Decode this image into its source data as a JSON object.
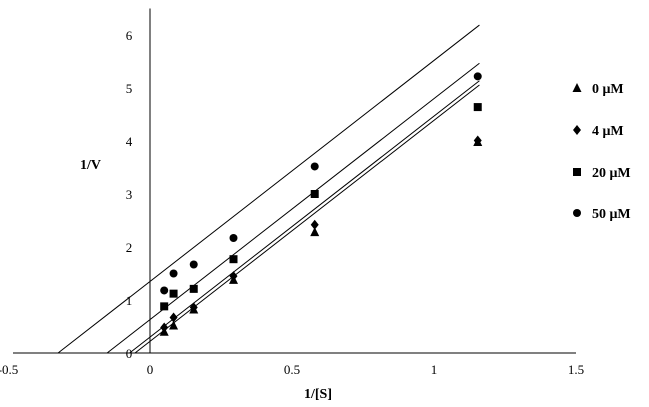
{
  "chart_data": {
    "type": "scatter",
    "xlabel": "1/[S]",
    "ylabel": "1/V",
    "xlim": [
      -0.5,
      1.5
    ],
    "ylim": [
      0,
      6.5
    ],
    "x_ticks": [
      -0.5,
      0,
      0.5,
      1,
      1.5
    ],
    "x_tick_labels": [
      "-0.5",
      "0",
      "0.5",
      "1",
      "1.5"
    ],
    "y_ticks": [
      0,
      1,
      2,
      3,
      4,
      5,
      6
    ],
    "y_tick_labels": [
      "0",
      "1",
      "2",
      "3",
      "4",
      "5",
      "6"
    ],
    "grid": false,
    "legend_position": "right",
    "series": [
      {
        "name": "0 μM",
        "marker": "triangle",
        "x": [
          0.05,
          0.083,
          0.154,
          0.294,
          0.58,
          1.154
        ],
        "y": [
          0.4,
          0.52,
          0.82,
          1.38,
          2.28,
          3.98
        ],
        "fit": {
          "slope": 4.17,
          "intercept": 0.22
        }
      },
      {
        "name": "4 μM",
        "marker": "diamond",
        "x": [
          0.05,
          0.083,
          0.154,
          0.294,
          0.58,
          1.154
        ],
        "y": [
          0.48,
          0.67,
          0.86,
          1.45,
          2.42,
          4.01
        ],
        "fit": {
          "slope": 4.17,
          "intercept": 0.3
        }
      },
      {
        "name": "20 μM",
        "marker": "square",
        "x": [
          0.05,
          0.083,
          0.154,
          0.294,
          0.58,
          1.154
        ],
        "y": [
          0.88,
          1.12,
          1.21,
          1.77,
          3.0,
          4.64
        ],
        "fit": {
          "slope": 4.17,
          "intercept": 0.63
        }
      },
      {
        "name": "50 μM",
        "marker": "circle",
        "x": [
          0.05,
          0.083,
          0.154,
          0.294,
          0.58,
          1.154
        ],
        "y": [
          1.18,
          1.5,
          1.67,
          2.17,
          3.52,
          5.22
        ],
        "fit": {
          "slope": 4.17,
          "intercept": 1.35
        }
      }
    ]
  }
}
